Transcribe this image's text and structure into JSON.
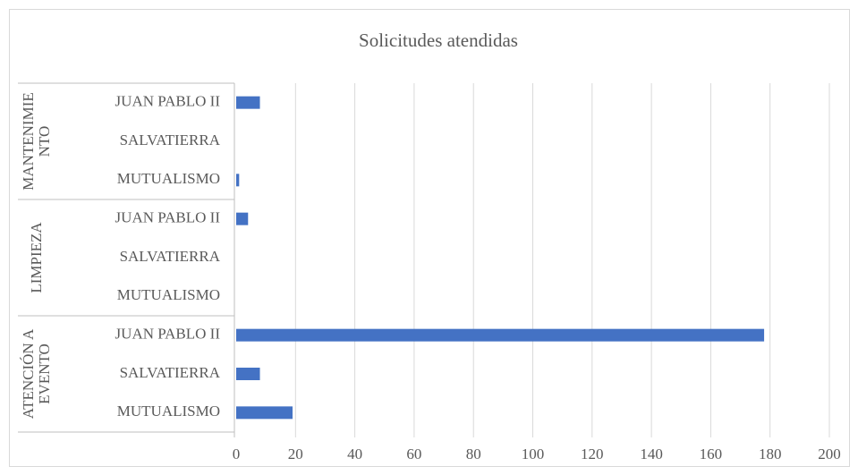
{
  "chart_data": {
    "type": "bar",
    "orientation": "horizontal",
    "title": "Solicitudes atendidas",
    "group_labels": [
      "ATENCIÓN A EVENTO",
      "LIMPIEZA",
      "MANTENIMIENTO"
    ],
    "categories": [
      "MUTUALISMO",
      "SALVATIERRA",
      "JUAN PABLO II",
      "MUTUALISMO",
      "SALVATIERRA",
      "JUAN PABLO II",
      "MUTUALISMO",
      "SALVATIERRA",
      "JUAN PABLO II"
    ],
    "values": [
      19,
      8,
      178,
      0,
      0,
      4,
      1,
      0,
      8
    ],
    "color": "#4472c4",
    "xlim": [
      0,
      200
    ],
    "xticks": [
      0,
      20,
      40,
      60,
      80,
      100,
      120,
      140,
      160,
      180,
      200
    ],
    "grid": true
  }
}
